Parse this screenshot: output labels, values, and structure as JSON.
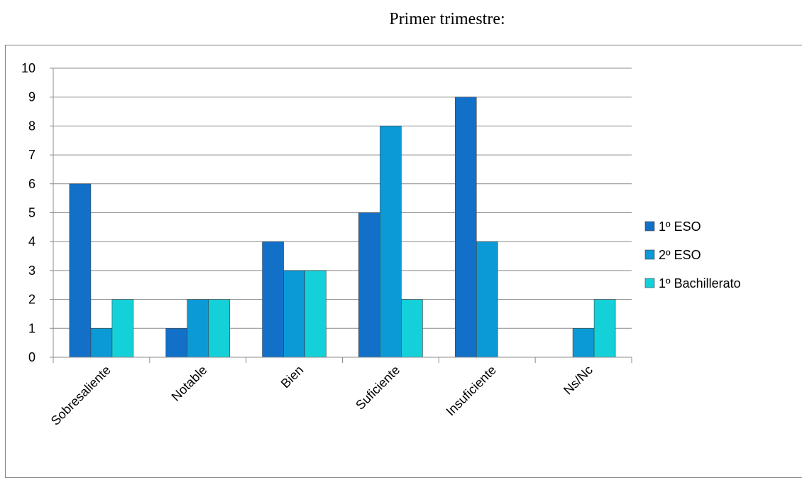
{
  "title": "Primer trimestre:",
  "chart_data": {
    "type": "bar",
    "title": "Primer trimestre:",
    "categories": [
      "Sobresaliente",
      "Notable",
      "Bien",
      "Suficiente",
      "Insuficiente",
      "Ns/Nc"
    ],
    "series": [
      {
        "name": "1º ESO",
        "color": "#1370c8",
        "values": [
          6,
          1,
          4,
          5,
          9,
          0
        ]
      },
      {
        "name": "2º ESO",
        "color": "#0b9ad6",
        "values": [
          1,
          2,
          3,
          8,
          4,
          1
        ]
      },
      {
        "name": "1º Bachillerato",
        "color": "#14d1d9",
        "values": [
          2,
          2,
          3,
          2,
          0,
          2
        ]
      }
    ],
    "ylim": [
      0,
      10
    ],
    "yticks": [
      "0",
      "1",
      "2",
      "3",
      "4",
      "5",
      "6",
      "7",
      "8",
      "9",
      "10"
    ],
    "grid": true,
    "legend": "right"
  }
}
